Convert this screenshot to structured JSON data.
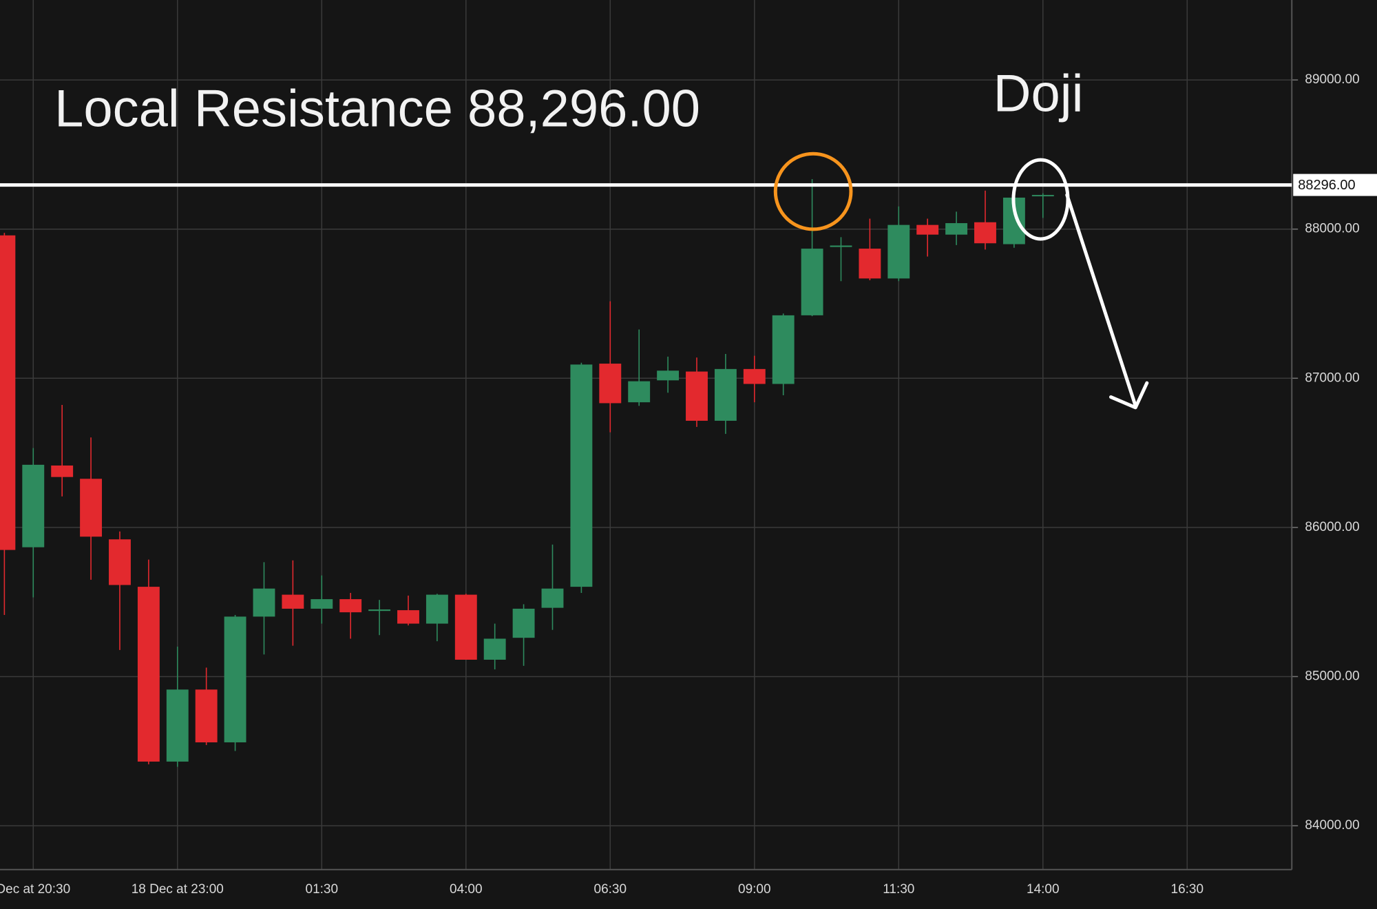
{
  "chart_data": {
    "type": "candlestick",
    "title": "Local Resistance 88,296.00",
    "annotations": [
      "Doji"
    ],
    "categories": [
      null,
      "Dec at 20:30",
      null,
      null,
      null,
      null,
      "18 Dec at 23:00",
      null,
      null,
      null,
      null,
      "01:30",
      null,
      null,
      null,
      null,
      "04:00",
      null,
      null,
      null,
      null,
      "06:30",
      null,
      null,
      null,
      null,
      "09:00",
      null,
      null,
      null,
      null,
      "11:30",
      null,
      null,
      null,
      null,
      "14:00",
      null,
      null,
      null,
      null,
      "16:30",
      null,
      null,
      null
    ],
    "open": [
      87958,
      85867,
      86415,
      86326,
      85920,
      85602,
      84430,
      84913,
      84559,
      85402,
      85549,
      85455,
      85519,
      85440,
      85445,
      85355,
      85549,
      85113,
      85260,
      85461,
      85602,
      87098,
      86839,
      86986,
      87045,
      86715,
      87062,
      86962,
      87422,
      87880,
      87869,
      87669,
      88028,
      87963,
      88046,
      87899,
      88223,
      null,
      null,
      null,
      null,
      null,
      null,
      null,
      null
    ],
    "high": [
      87975,
      86532,
      86821,
      86603,
      85973,
      85784,
      85201,
      85060,
      85413,
      85767,
      85779,
      85678,
      85561,
      85514,
      85543,
      85555,
      85555,
      85355,
      85485,
      85885,
      87104,
      87516,
      87327,
      87145,
      87139,
      87163,
      87151,
      87434,
      88335,
      87946,
      88070,
      88152,
      88070,
      88117,
      88258,
      88217,
      88240,
      null,
      null,
      null,
      null,
      null,
      null,
      null,
      null
    ],
    "low": [
      85413,
      85531,
      86208,
      85649,
      85178,
      84412,
      84395,
      84541,
      84501,
      85148,
      85207,
      85355,
      85254,
      85278,
      85343,
      85237,
      85113,
      85048,
      85072,
      85313,
      85561,
      86638,
      86815,
      86903,
      86674,
      86627,
      86839,
      86886,
      87416,
      87651,
      87657,
      87651,
      87816,
      87893,
      87863,
      87875,
      88075,
      null,
      null,
      null,
      null,
      null,
      null,
      null,
      null
    ],
    "close": [
      85849,
      86420,
      86338,
      85938,
      85614,
      84430,
      84913,
      84559,
      85402,
      85590,
      85455,
      85519,
      85431,
      85450,
      85355,
      85549,
      85113,
      85254,
      85455,
      85590,
      87092,
      86833,
      86980,
      87051,
      86715,
      87062,
      86962,
      87422,
      87869,
      87890,
      87669,
      88028,
      87963,
      88040,
      87905,
      88211,
      88229,
      null,
      null,
      null,
      null,
      null,
      null,
      null,
      null
    ],
    "up_color": "#2e8b5e",
    "down_color": "#e3292e",
    "ylim": [
      83706,
      89536
    ],
    "yticks": [
      {
        "value": 84000,
        "label": "84000.00"
      },
      {
        "value": 85000,
        "label": "85000.00"
      },
      {
        "value": 86000,
        "label": "86000.00"
      },
      {
        "value": 87000,
        "label": "87000.00"
      },
      {
        "value": 88000,
        "label": "88000.00"
      },
      {
        "value": 89000,
        "label": "89000.00"
      }
    ],
    "resistance": {
      "value": 88296,
      "label": "88296.00"
    },
    "grid": true
  }
}
